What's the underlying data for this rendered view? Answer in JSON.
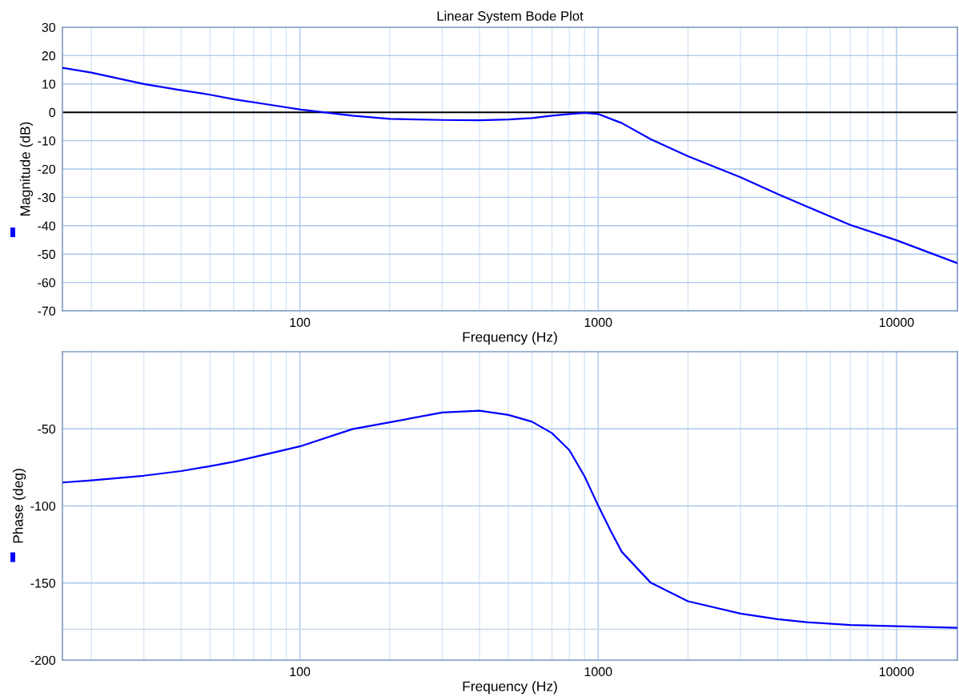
{
  "chart_data": [
    {
      "type": "line",
      "title": "Linear System Bode Plot",
      "xlabel": "Frequency (Hz)",
      "ylabel": "Magnitude (dB)",
      "log": "x",
      "grid": true,
      "xlim": [
        16,
        16000
      ],
      "xticks": [
        100,
        1000,
        10000
      ],
      "ylim": [
        -70,
        30
      ],
      "yticks": [
        -70,
        -60,
        -50,
        -40,
        -30,
        -20,
        -10,
        0,
        10,
        20,
        30
      ],
      "ref_lines": [
        {
          "axis": "y",
          "value": 0,
          "color": "#000000"
        }
      ],
      "series": [
        {
          "color": "#0000ff",
          "x": [
            16,
            20,
            30,
            40,
            50,
            60,
            80,
            100,
            120,
            150,
            200,
            300,
            400,
            500,
            600,
            700,
            800,
            900,
            1000,
            1200,
            1500,
            2000,
            3000,
            4000,
            5000,
            7000,
            10000,
            16000
          ],
          "values": [
            15.7,
            14,
            10,
            7.8,
            6.2,
            4.6,
            2.6,
            1,
            0,
            -1.2,
            -2.3,
            -2.7,
            -2.8,
            -2.5,
            -2,
            -1.2,
            -0.6,
            -0.2,
            -0.6,
            -3.8,
            -9.5,
            -15.5,
            -22.9,
            -28.8,
            -33.2,
            -39.7,
            -45.1,
            -53.2
          ]
        }
      ]
    },
    {
      "type": "line",
      "xlabel": "Frequency (Hz)",
      "ylabel": "Phase (deg)",
      "log": "x",
      "grid": true,
      "xlim": [
        16,
        16000
      ],
      "xticks": [
        100,
        1000,
        10000
      ],
      "ylim": [
        -200,
        0
      ],
      "yticks": [
        -200,
        -150,
        -100,
        -50
      ],
      "ref_lines": [
        {
          "axis": "y",
          "value": -180,
          "color": "#c8d8ea"
        }
      ],
      "series": [
        {
          "color": "#0000ff",
          "x": [
            16,
            20,
            30,
            40,
            50,
            60,
            80,
            100,
            150,
            200,
            300,
            400,
            500,
            600,
            700,
            800,
            900,
            1000,
            1100,
            1200,
            1500,
            2000,
            3000,
            4000,
            5000,
            7000,
            10000,
            16000
          ],
          "values": [
            -84.8,
            -83.4,
            -80.4,
            -77.4,
            -74.2,
            -71.4,
            -65.8,
            -61.4,
            -50.2,
            -45.8,
            -39.4,
            -38.2,
            -41,
            -45.4,
            -52.8,
            -63.8,
            -80.8,
            -99.8,
            -116,
            -129.8,
            -149.8,
            -161.8,
            -169.8,
            -173.4,
            -175.4,
            -177.2,
            -178,
            -179
          ]
        }
      ]
    }
  ]
}
